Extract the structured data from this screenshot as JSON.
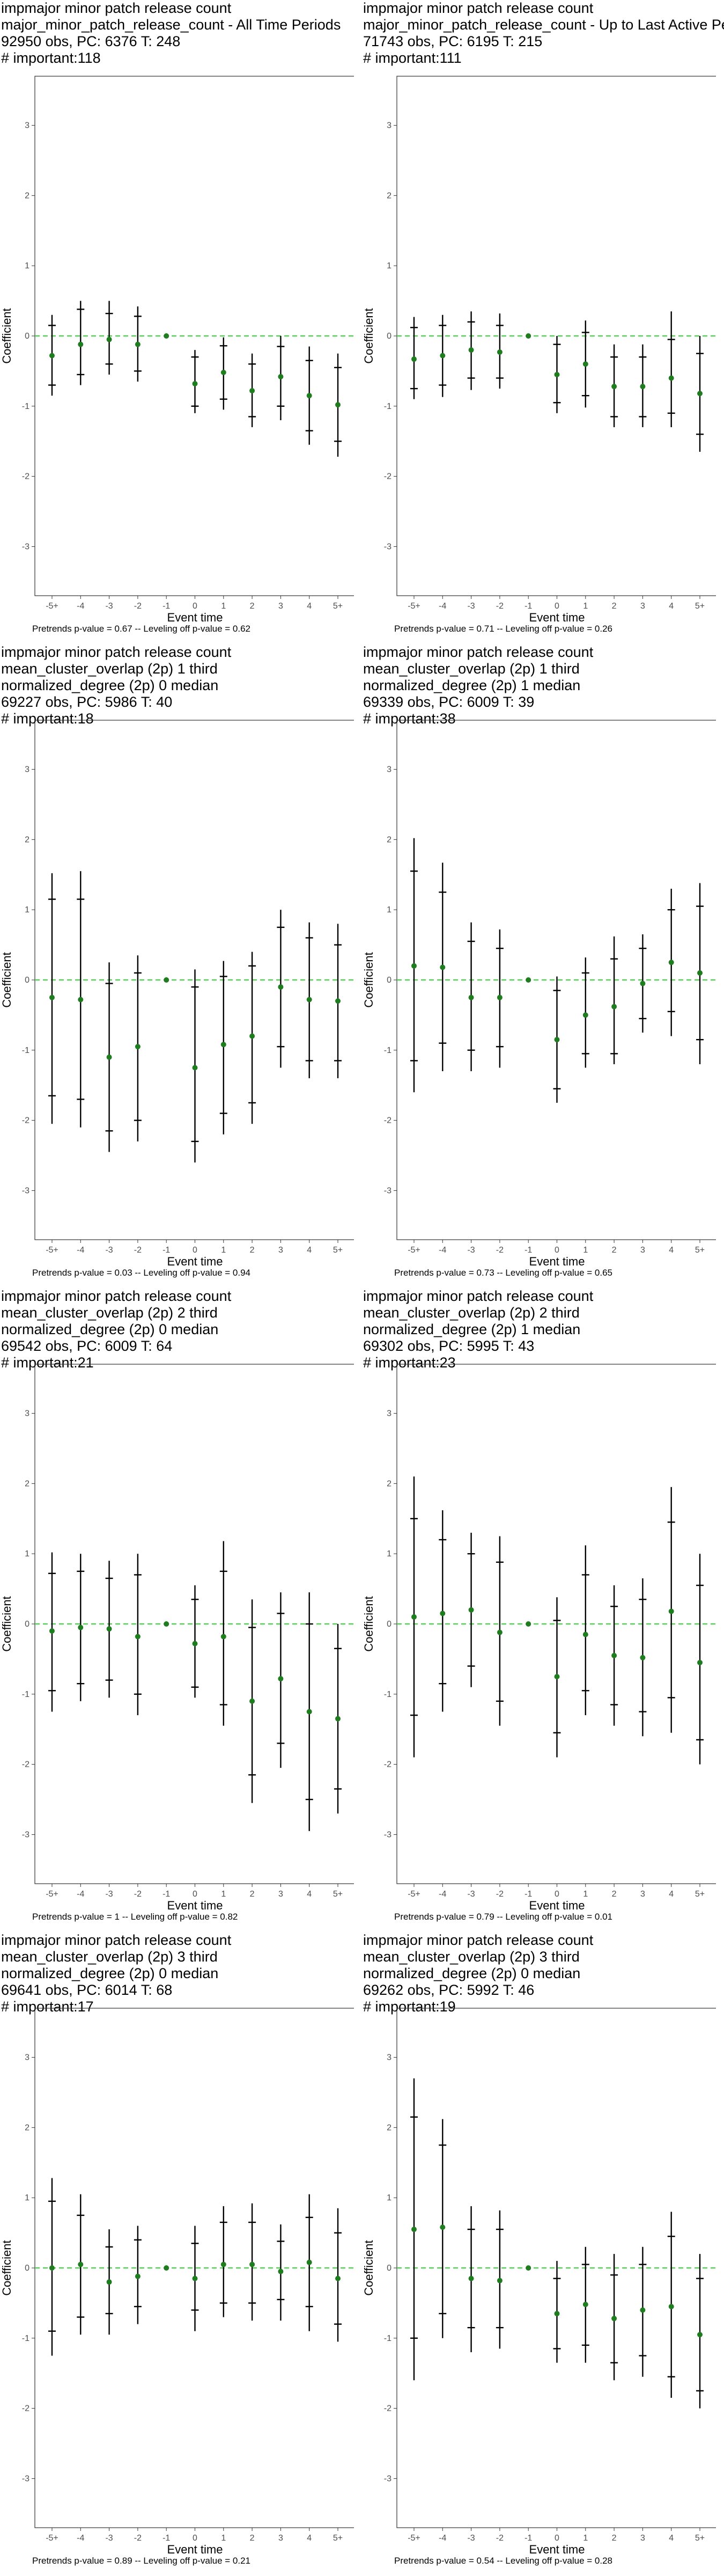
{
  "chart_data": [
    {
      "type": "scatter",
      "title_lines": [
        "impmajor minor patch release count",
        "major_minor_patch_release_count - All Time Periods",
        "92950 obs, PC: 6376 T: 248",
        "# important:118"
      ],
      "footnote": "Pretrends p-value = 0.67 -- Leveling off p-value = 0.62",
      "xlabel": "Event time",
      "ylabel": "Coefficient",
      "x": [
        "-5+",
        "-4",
        "-3",
        "-2",
        "-1",
        "0",
        "1",
        "2",
        "3",
        "4",
        "5+"
      ],
      "ylim": [
        -3.7,
        3.7
      ],
      "yticks": [
        -3,
        -2,
        -1,
        0,
        1,
        2,
        3
      ],
      "estimates": [
        -0.28,
        -0.12,
        -0.05,
        -0.12,
        0.0,
        -0.68,
        -0.52,
        -0.78,
        -0.58,
        -0.85,
        -0.98
      ],
      "ci_inner": [
        [
          -0.7,
          0.15
        ],
        [
          -0.55,
          0.38
        ],
        [
          -0.4,
          0.32
        ],
        [
          -0.5,
          0.28
        ],
        [
          0.0,
          0.0
        ],
        [
          -1.0,
          -0.3
        ],
        [
          -0.9,
          -0.14
        ],
        [
          -1.15,
          -0.4
        ],
        [
          -1.0,
          -0.15
        ],
        [
          -1.35,
          -0.35
        ],
        [
          -1.5,
          -0.45
        ]
      ],
      "ci_outer": [
        [
          -0.85,
          0.3
        ],
        [
          -0.7,
          0.5
        ],
        [
          -0.55,
          0.5
        ],
        [
          -0.65,
          0.42
        ],
        [
          0.0,
          0.0
        ],
        [
          -1.1,
          -0.2
        ],
        [
          -1.05,
          -0.02
        ],
        [
          -1.3,
          -0.25
        ],
        [
          -1.2,
          0.0
        ],
        [
          -1.55,
          -0.15
        ],
        [
          -1.72,
          -0.25
        ]
      ],
      "reference_line": 0
    },
    {
      "type": "scatter",
      "title_lines": [
        "impmajor minor patch release count",
        "major_minor_patch_release_count - Up to Last Active Period",
        "71743 obs, PC: 6195 T: 215",
        "# important:111"
      ],
      "footnote": "Pretrends p-value = 0.71 -- Leveling off p-value = 0.26",
      "xlabel": "Event time",
      "ylabel": "Coefficient",
      "x": [
        "-5+",
        "-4",
        "-3",
        "-2",
        "-1",
        "0",
        "1",
        "2",
        "3",
        "4",
        "5+"
      ],
      "ylim": [
        -3.7,
        3.7
      ],
      "yticks": [
        -3,
        -2,
        -1,
        0,
        1,
        2,
        3
      ],
      "estimates": [
        -0.33,
        -0.28,
        -0.2,
        -0.23,
        0.0,
        -0.55,
        -0.4,
        -0.72,
        -0.72,
        -0.6,
        -0.82
      ],
      "ci_inner": [
        [
          -0.75,
          0.12
        ],
        [
          -0.7,
          0.15
        ],
        [
          -0.6,
          0.2
        ],
        [
          -0.6,
          0.15
        ],
        [
          0.0,
          0.0
        ],
        [
          -0.95,
          -0.12
        ],
        [
          -0.85,
          0.05
        ],
        [
          -1.15,
          -0.3
        ],
        [
          -1.15,
          -0.3
        ],
        [
          -1.1,
          -0.05
        ],
        [
          -1.4,
          -0.25
        ]
      ],
      "ci_outer": [
        [
          -0.9,
          0.27
        ],
        [
          -0.87,
          0.3
        ],
        [
          -0.77,
          0.35
        ],
        [
          -0.75,
          0.32
        ],
        [
          0.0,
          0.0
        ],
        [
          -1.1,
          0.0
        ],
        [
          -1.02,
          0.22
        ],
        [
          -1.3,
          -0.12
        ],
        [
          -1.3,
          -0.12
        ],
        [
          -1.3,
          0.35
        ],
        [
          -1.65,
          0.0
        ]
      ],
      "reference_line": 0
    },
    {
      "type": "scatter",
      "title_lines": [
        "impmajor minor patch release count",
        "mean_cluster_overlap (2p) 1 third",
        "normalized_degree (2p) 0 median",
        "69227 obs, PC: 5986 T: 40",
        "# important:18"
      ],
      "footnote": "Pretrends p-value = 0.03 -- Leveling off p-value = 0.94",
      "xlabel": "Event time",
      "ylabel": "Coefficient",
      "x": [
        "-5+",
        "-4",
        "-3",
        "-2",
        "-1",
        "0",
        "1",
        "2",
        "3",
        "4",
        "5+"
      ],
      "ylim": [
        -3.7,
        3.7
      ],
      "yticks": [
        -3,
        -2,
        -1,
        0,
        1,
        2,
        3
      ],
      "estimates": [
        -0.25,
        -0.28,
        -1.1,
        -0.95,
        0.0,
        -1.25,
        -0.92,
        -0.8,
        -0.1,
        -0.28,
        -0.3
      ],
      "ci_inner": [
        [
          -1.65,
          1.15
        ],
        [
          -1.7,
          1.15
        ],
        [
          -2.15,
          -0.05
        ],
        [
          -2.0,
          0.1
        ],
        [
          0.0,
          0.0
        ],
        [
          -2.3,
          -0.1
        ],
        [
          -1.9,
          0.05
        ],
        [
          -1.75,
          0.2
        ],
        [
          -0.95,
          0.75
        ],
        [
          -1.15,
          0.6
        ],
        [
          -1.15,
          0.5
        ]
      ],
      "ci_outer": [
        [
          -2.05,
          1.52
        ],
        [
          -2.1,
          1.55
        ],
        [
          -2.45,
          0.25
        ],
        [
          -2.3,
          0.35
        ],
        [
          0.0,
          0.0
        ],
        [
          -2.6,
          0.15
        ],
        [
          -2.2,
          0.27
        ],
        [
          -2.05,
          0.4
        ],
        [
          -1.25,
          1.0
        ],
        [
          -1.4,
          0.82
        ],
        [
          -1.4,
          0.8
        ]
      ],
      "reference_line": 0
    },
    {
      "type": "scatter",
      "title_lines": [
        "impmajor minor patch release count",
        "mean_cluster_overlap (2p) 1 third",
        "normalized_degree (2p) 1 median",
        "69339 obs, PC: 6009 T: 39",
        "# important:38"
      ],
      "footnote": "Pretrends p-value = 0.73 -- Leveling off p-value = 0.65",
      "xlabel": "Event time",
      "ylabel": "Coefficient",
      "x": [
        "-5+",
        "-4",
        "-3",
        "-2",
        "-1",
        "0",
        "1",
        "2",
        "3",
        "4",
        "5+"
      ],
      "ylim": [
        -3.7,
        3.7
      ],
      "yticks": [
        -3,
        -2,
        -1,
        0,
        1,
        2,
        3
      ],
      "estimates": [
        0.2,
        0.18,
        -0.25,
        -0.25,
        0.0,
        -0.85,
        -0.5,
        -0.38,
        -0.05,
        0.25,
        0.1
      ],
      "ci_inner": [
        [
          -1.15,
          1.55
        ],
        [
          -0.9,
          1.25
        ],
        [
          -1.0,
          0.55
        ],
        [
          -0.95,
          0.45
        ],
        [
          0.0,
          0.0
        ],
        [
          -1.55,
          -0.15
        ],
        [
          -1.05,
          0.1
        ],
        [
          -1.05,
          0.3
        ],
        [
          -0.55,
          0.45
        ],
        [
          -0.45,
          1.0
        ],
        [
          -0.85,
          1.05
        ]
      ],
      "ci_outer": [
        [
          -1.6,
          2.02
        ],
        [
          -1.3,
          1.67
        ],
        [
          -1.3,
          0.82
        ],
        [
          -1.25,
          0.72
        ],
        [
          0.0,
          0.0
        ],
        [
          -1.75,
          0.05
        ],
        [
          -1.25,
          0.32
        ],
        [
          -1.2,
          0.62
        ],
        [
          -0.75,
          0.65
        ],
        [
          -0.8,
          1.3
        ],
        [
          -1.2,
          1.38
        ]
      ],
      "reference_line": 0
    },
    {
      "type": "scatter",
      "title_lines": [
        "impmajor minor patch release count",
        "mean_cluster_overlap (2p) 2 third",
        "normalized_degree (2p) 0 median",
        "69542 obs, PC: 6009 T: 64",
        "# important:21"
      ],
      "footnote": "Pretrends p-value = 1 -- Leveling off p-value = 0.82",
      "xlabel": "Event time",
      "ylabel": "Coefficient",
      "x": [
        "-5+",
        "-4",
        "-3",
        "-2",
        "-1",
        "0",
        "1",
        "2",
        "3",
        "4",
        "5+"
      ],
      "ylim": [
        -3.7,
        3.7
      ],
      "yticks": [
        -3,
        -2,
        -1,
        0,
        1,
        2,
        3
      ],
      "estimates": [
        -0.1,
        -0.05,
        -0.07,
        -0.18,
        0.0,
        -0.28,
        -0.18,
        -1.1,
        -0.78,
        -1.25,
        -1.35
      ],
      "ci_inner": [
        [
          -0.95,
          0.72
        ],
        [
          -0.85,
          0.75
        ],
        [
          -0.8,
          0.65
        ],
        [
          -1.0,
          0.7
        ],
        [
          0.0,
          0.0
        ],
        [
          -0.9,
          0.35
        ],
        [
          -1.15,
          0.75
        ],
        [
          -2.15,
          -0.05
        ],
        [
          -1.7,
          0.15
        ],
        [
          -2.5,
          0.0
        ],
        [
          -2.35,
          -0.35
        ]
      ],
      "ci_outer": [
        [
          -1.25,
          1.02
        ],
        [
          -1.1,
          1.0
        ],
        [
          -1.05,
          0.9
        ],
        [
          -1.3,
          1.0
        ],
        [
          0.0,
          0.0
        ],
        [
          -1.05,
          0.55
        ],
        [
          -1.45,
          1.18
        ],
        [
          -2.55,
          0.35
        ],
        [
          -2.05,
          0.45
        ],
        [
          -2.95,
          0.45
        ],
        [
          -2.7,
          0.0
        ]
      ],
      "reference_line": 0
    },
    {
      "type": "scatter",
      "title_lines": [
        "impmajor minor patch release count",
        "mean_cluster_overlap (2p) 2 third",
        "normalized_degree (2p) 1 median",
        "69302 obs, PC: 5995 T: 43",
        "# important:23"
      ],
      "footnote": "Pretrends p-value = 0.79 -- Leveling off p-value = 0.01",
      "xlabel": "Event time",
      "ylabel": "Coefficient",
      "x": [
        "-5+",
        "-4",
        "-3",
        "-2",
        "-1",
        "0",
        "1",
        "2",
        "3",
        "4",
        "5+"
      ],
      "ylim": [
        -3.7,
        3.7
      ],
      "yticks": [
        -3,
        -2,
        -1,
        0,
        1,
        2,
        3
      ],
      "estimates": [
        0.1,
        0.15,
        0.2,
        -0.12,
        0.0,
        -0.75,
        -0.15,
        -0.45,
        -0.48,
        0.18,
        -0.55
      ],
      "ci_inner": [
        [
          -1.3,
          1.5
        ],
        [
          -0.85,
          1.2
        ],
        [
          -0.6,
          1.0
        ],
        [
          -1.1,
          0.88
        ],
        [
          0.0,
          0.0
        ],
        [
          -1.55,
          0.05
        ],
        [
          -0.95,
          0.7
        ],
        [
          -1.15,
          0.25
        ],
        [
          -1.25,
          0.35
        ],
        [
          -1.05,
          1.45
        ],
        [
          -1.65,
          0.55
        ]
      ],
      "ci_outer": [
        [
          -1.9,
          2.1
        ],
        [
          -1.25,
          1.62
        ],
        [
          -0.9,
          1.3
        ],
        [
          -1.45,
          1.25
        ],
        [
          0.0,
          0.0
        ],
        [
          -1.9,
          0.38
        ],
        [
          -1.3,
          1.12
        ],
        [
          -1.45,
          0.55
        ],
        [
          -1.6,
          0.65
        ],
        [
          -1.55,
          1.95
        ],
        [
          -2.0,
          1.0
        ]
      ],
      "reference_line": 0
    },
    {
      "type": "scatter",
      "title_lines": [
        "impmajor minor patch release count",
        "mean_cluster_overlap (2p) 3 third",
        "normalized_degree (2p) 0 median",
        "69641 obs, PC: 6014 T: 68",
        "# important:17"
      ],
      "footnote": "Pretrends p-value = 0.89 -- Leveling off p-value = 0.21",
      "xlabel": "Event time",
      "ylabel": "Coefficient",
      "x": [
        "-5+",
        "-4",
        "-3",
        "-2",
        "-1",
        "0",
        "1",
        "2",
        "3",
        "4",
        "5+"
      ],
      "ylim": [
        -3.7,
        3.7
      ],
      "yticks": [
        -3,
        -2,
        -1,
        0,
        1,
        2,
        3
      ],
      "estimates": [
        0.0,
        0.05,
        -0.2,
        -0.12,
        0.0,
        -0.15,
        0.05,
        0.05,
        -0.05,
        0.08,
        -0.15
      ],
      "ci_inner": [
        [
          -0.9,
          0.95
        ],
        [
          -0.7,
          0.75
        ],
        [
          -0.65,
          0.3
        ],
        [
          -0.55,
          0.4
        ],
        [
          0.0,
          0.0
        ],
        [
          -0.6,
          0.35
        ],
        [
          -0.5,
          0.65
        ],
        [
          -0.5,
          0.65
        ],
        [
          -0.45,
          0.38
        ],
        [
          -0.55,
          0.72
        ],
        [
          -0.8,
          0.5
        ]
      ],
      "ci_outer": [
        [
          -1.25,
          1.28
        ],
        [
          -0.95,
          1.05
        ],
        [
          -0.95,
          0.55
        ],
        [
          -0.8,
          0.6
        ],
        [
          0.0,
          0.0
        ],
        [
          -0.9,
          0.6
        ],
        [
          -0.7,
          0.88
        ],
        [
          -0.75,
          0.92
        ],
        [
          -0.75,
          0.62
        ],
        [
          -0.9,
          1.05
        ],
        [
          -1.05,
          0.85
        ]
      ],
      "reference_line": 0
    },
    {
      "type": "scatter",
      "title_lines": [
        "impmajor minor patch release count",
        "mean_cluster_overlap (2p) 3 third",
        "normalized_degree (2p) 0 median",
        "69262 obs, PC: 5992 T: 46",
        "# important:19"
      ],
      "footnote": "Pretrends p-value = 0.54 -- Leveling off p-value = 0.28",
      "xlabel": "Event time",
      "ylabel": "Coefficient",
      "x": [
        "-5+",
        "-4",
        "-3",
        "-2",
        "-1",
        "0",
        "1",
        "2",
        "3",
        "4",
        "5+"
      ],
      "ylim": [
        -3.7,
        3.7
      ],
      "yticks": [
        -3,
        -2,
        -1,
        0,
        1,
        2,
        3
      ],
      "estimates": [
        0.55,
        0.58,
        -0.15,
        -0.18,
        0.0,
        -0.65,
        -0.52,
        -0.72,
        -0.6,
        -0.55,
        -0.95
      ],
      "ci_inner": [
        [
          -1.0,
          2.15
        ],
        [
          -0.65,
          1.75
        ],
        [
          -0.85,
          0.55
        ],
        [
          -0.85,
          0.55
        ],
        [
          0.0,
          0.0
        ],
        [
          -1.15,
          -0.15
        ],
        [
          -1.1,
          0.05
        ],
        [
          -1.35,
          -0.1
        ],
        [
          -1.25,
          0.05
        ],
        [
          -1.55,
          0.45
        ],
        [
          -1.75,
          -0.15
        ]
      ],
      "ci_outer": [
        [
          -1.6,
          2.7
        ],
        [
          -1.0,
          2.12
        ],
        [
          -1.2,
          0.88
        ],
        [
          -1.15,
          0.82
        ],
        [
          0.0,
          0.0
        ],
        [
          -1.35,
          0.1
        ],
        [
          -1.35,
          0.3
        ],
        [
          -1.6,
          0.2
        ],
        [
          -1.55,
          0.3
        ],
        [
          -1.85,
          0.8
        ],
        [
          -2.0,
          0.2
        ]
      ],
      "reference_line": 0
    }
  ],
  "colors": {
    "point": "#1e7d1e",
    "reference_line": "#33dd33",
    "ci": "#000000",
    "frame": "#333333",
    "tick_text": "#4d4d4d"
  }
}
